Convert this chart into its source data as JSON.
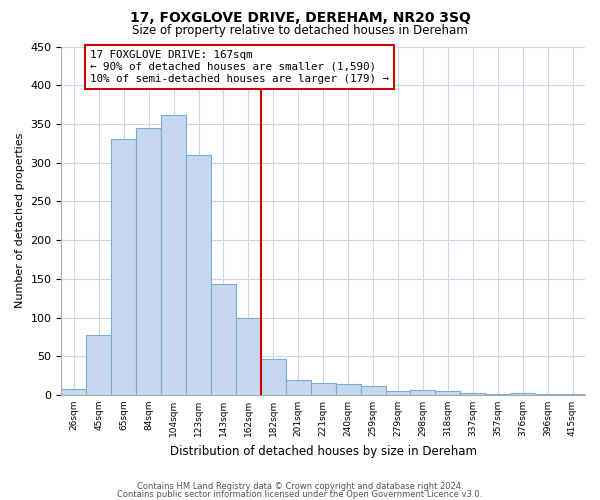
{
  "title": "17, FOXGLOVE DRIVE, DEREHAM, NR20 3SQ",
  "subtitle": "Size of property relative to detached houses in Dereham",
  "xlabel": "Distribution of detached houses by size in Dereham",
  "ylabel": "Number of detached properties",
  "bar_labels": [
    "26sqm",
    "45sqm",
    "65sqm",
    "84sqm",
    "104sqm",
    "123sqm",
    "143sqm",
    "162sqm",
    "182sqm",
    "201sqm",
    "221sqm",
    "240sqm",
    "259sqm",
    "279sqm",
    "298sqm",
    "318sqm",
    "337sqm",
    "357sqm",
    "376sqm",
    "396sqm",
    "415sqm"
  ],
  "bar_values": [
    8,
    77,
    330,
    345,
    362,
    310,
    143,
    100,
    46,
    19,
    15,
    14,
    11,
    5,
    6,
    5,
    2,
    1,
    2,
    1,
    1
  ],
  "bar_color": "#c5d8f0",
  "bar_edge_color": "#7aadd4",
  "vline_color": "#cc0000",
  "vline_index": 7.5,
  "annotation_title": "17 FOXGLOVE DRIVE: 167sqm",
  "annotation_line1": "← 90% of detached houses are smaller (1,590)",
  "annotation_line2": "10% of semi-detached houses are larger (179) →",
  "annotation_box_color": "#cc0000",
  "ylim": [
    0,
    450
  ],
  "yticks": [
    0,
    50,
    100,
    150,
    200,
    250,
    300,
    350,
    400,
    450
  ],
  "footer1": "Contains HM Land Registry data © Crown copyright and database right 2024.",
  "footer2": "Contains public sector information licensed under the Open Government Licence v3.0.",
  "bg_color": "#ffffff",
  "grid_color": "#ccd6e8"
}
